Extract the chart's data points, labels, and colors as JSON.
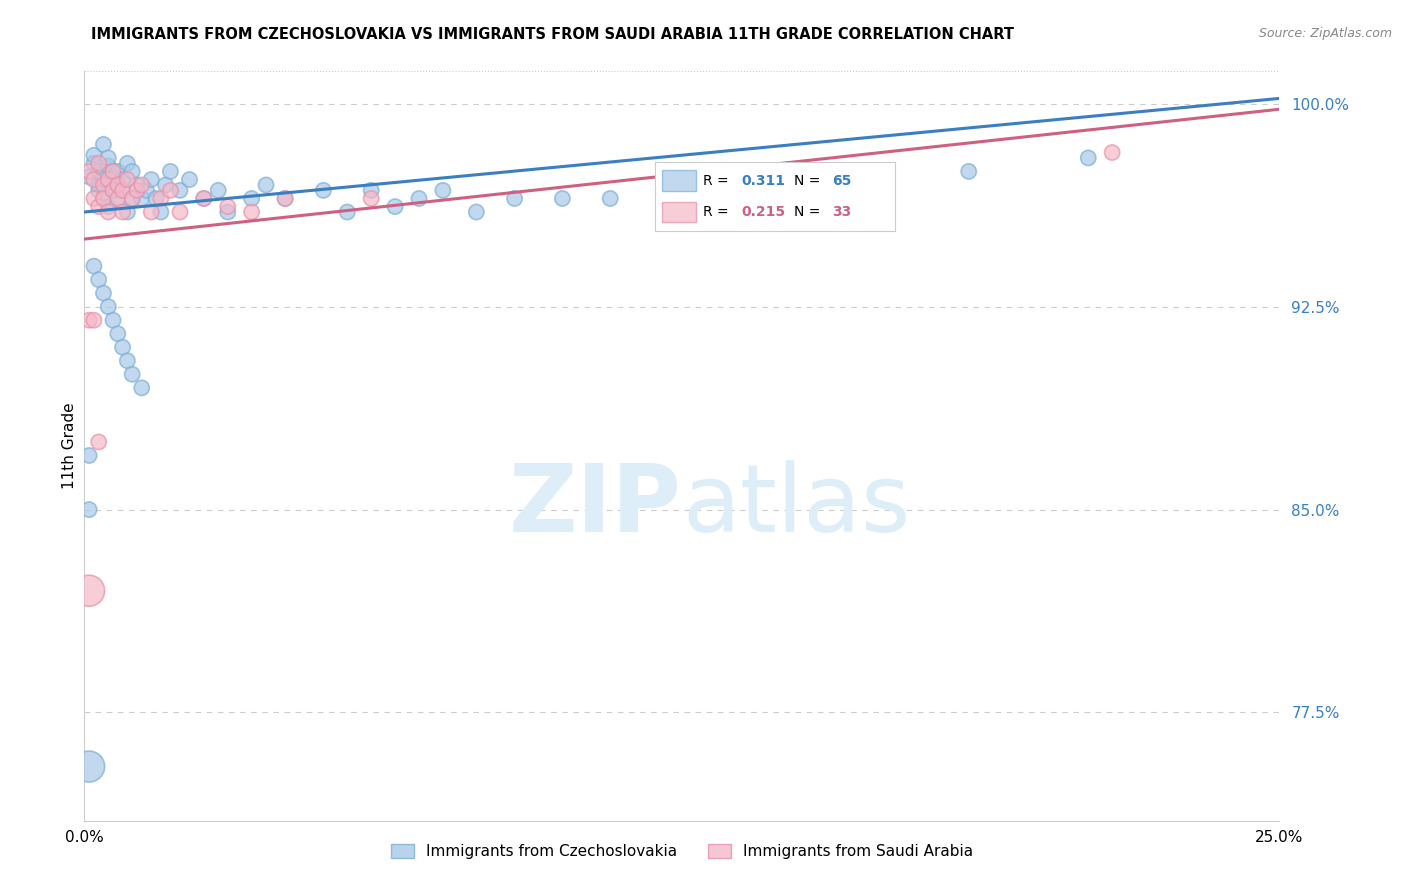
{
  "title": "IMMIGRANTS FROM CZECHOSLOVAKIA VS IMMIGRANTS FROM SAUDI ARABIA 11TH GRADE CORRELATION CHART",
  "source": "Source: ZipAtlas.com",
  "ylabel": "11th Grade",
  "watermark": "ZIPatlas",
  "legend_blue_label": "Immigrants from Czechoslovakia",
  "legend_pink_label": "Immigrants from Saudi Arabia",
  "blue_R": 0.311,
  "blue_N": 65,
  "pink_R": 0.215,
  "pink_N": 33,
  "blue_color": "#a8c8e8",
  "pink_color": "#f4b8c8",
  "blue_edge_color": "#7bafd4",
  "pink_edge_color": "#e890a8",
  "blue_line_color": "#3a7fc1",
  "pink_line_color": "#d06080",
  "xlim": [
    0.0,
    0.25
  ],
  "ylim": [
    0.735,
    1.012
  ],
  "yticks": [
    0.775,
    0.85,
    0.925,
    1.0
  ],
  "ytick_labels": [
    "77.5%",
    "85.0%",
    "92.5%",
    "100.0%"
  ],
  "blue_x": [
    0.001,
    0.002,
    0.002,
    0.003,
    0.003,
    0.003,
    0.004,
    0.004,
    0.004,
    0.005,
    0.005,
    0.005,
    0.006,
    0.006,
    0.006,
    0.007,
    0.007,
    0.007,
    0.008,
    0.008,
    0.009,
    0.009,
    0.01,
    0.01,
    0.011,
    0.012,
    0.013,
    0.014,
    0.015,
    0.016,
    0.017,
    0.018,
    0.02,
    0.022,
    0.025,
    0.028,
    0.03,
    0.035,
    0.038,
    0.042,
    0.05,
    0.055,
    0.06,
    0.065,
    0.07,
    0.075,
    0.082,
    0.09,
    0.1,
    0.11,
    0.002,
    0.003,
    0.004,
    0.005,
    0.006,
    0.007,
    0.008,
    0.009,
    0.01,
    0.012,
    0.001,
    0.185,
    0.21,
    0.001,
    0.001
  ],
  "blue_y": [
    0.973,
    0.978,
    0.981,
    0.97,
    0.975,
    0.968,
    0.965,
    0.972,
    0.985,
    0.962,
    0.977,
    0.98,
    0.975,
    0.968,
    0.973,
    0.97,
    0.965,
    0.975,
    0.968,
    0.972,
    0.96,
    0.978,
    0.975,
    0.965,
    0.97,
    0.965,
    0.968,
    0.972,
    0.965,
    0.96,
    0.97,
    0.975,
    0.968,
    0.972,
    0.965,
    0.968,
    0.96,
    0.965,
    0.97,
    0.965,
    0.968,
    0.96,
    0.968,
    0.962,
    0.965,
    0.968,
    0.96,
    0.965,
    0.965,
    0.965,
    0.94,
    0.935,
    0.93,
    0.925,
    0.92,
    0.915,
    0.91,
    0.905,
    0.9,
    0.895,
    0.87,
    0.975,
    0.98,
    0.85,
    0.755
  ],
  "blue_sizes": [
    120,
    120,
    120,
    120,
    120,
    120,
    120,
    120,
    120,
    120,
    120,
    120,
    120,
    120,
    120,
    120,
    120,
    120,
    120,
    120,
    120,
    120,
    120,
    120,
    120,
    120,
    120,
    120,
    120,
    120,
    120,
    120,
    120,
    120,
    120,
    120,
    120,
    120,
    120,
    120,
    120,
    120,
    120,
    120,
    120,
    120,
    120,
    120,
    120,
    120,
    120,
    120,
    120,
    120,
    120,
    120,
    120,
    120,
    120,
    120,
    120,
    120,
    120,
    120,
    500
  ],
  "pink_x": [
    0.001,
    0.002,
    0.002,
    0.003,
    0.003,
    0.004,
    0.004,
    0.005,
    0.005,
    0.006,
    0.006,
    0.007,
    0.007,
    0.008,
    0.008,
    0.009,
    0.01,
    0.011,
    0.012,
    0.014,
    0.016,
    0.018,
    0.02,
    0.025,
    0.03,
    0.035,
    0.042,
    0.06,
    0.001,
    0.002,
    0.003,
    0.215,
    0.001
  ],
  "pink_y": [
    0.975,
    0.972,
    0.965,
    0.978,
    0.962,
    0.97,
    0.965,
    0.96,
    0.972,
    0.968,
    0.975,
    0.965,
    0.97,
    0.968,
    0.96,
    0.972,
    0.965,
    0.968,
    0.97,
    0.96,
    0.965,
    0.968,
    0.96,
    0.965,
    0.962,
    0.96,
    0.965,
    0.965,
    0.92,
    0.92,
    0.875,
    0.982,
    0.82
  ],
  "pink_sizes": [
    120,
    120,
    120,
    120,
    120,
    120,
    120,
    120,
    120,
    120,
    120,
    120,
    120,
    120,
    120,
    120,
    120,
    120,
    120,
    120,
    120,
    120,
    120,
    120,
    120,
    120,
    120,
    120,
    120,
    120,
    120,
    120,
    500
  ]
}
